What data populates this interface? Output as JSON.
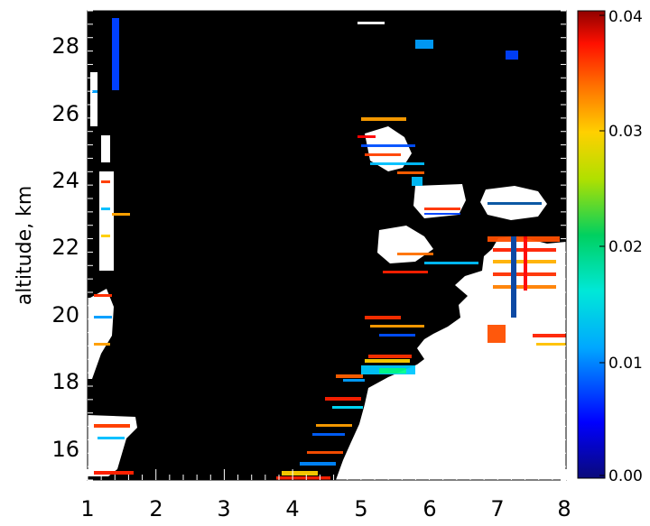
{
  "chart_data": {
    "type": "heatmap",
    "title": "",
    "xlabel": "",
    "ylabel": "altitude, km",
    "xlim": [
      1,
      8
    ],
    "ylim": [
      15,
      29
    ],
    "x_ticks": [
      "1",
      "2",
      "3",
      "4",
      "5",
      "6",
      "7",
      "8"
    ],
    "y_ticks": [
      "16",
      "18",
      "20",
      "22",
      "24",
      "26",
      "28"
    ],
    "colorbar": {
      "range": [
        0.0,
        0.04
      ],
      "ticks": [
        "0.00",
        "0.01",
        "0.02",
        "0.03",
        "0.04"
      ],
      "colormap": "rainbow (dark blue → cyan → green → yellow → orange → red → dark red)"
    },
    "background_color": "#000000",
    "saturated_color": "#ffffff",
    "regions": [
      {
        "description": "white saturated region (values above scale)",
        "x_from": 4.9,
        "x_to": 8.0,
        "y_from": 15.0,
        "y_to": 22.2
      },
      {
        "description": "white saturated patches near top-right",
        "x_from": 5.8,
        "x_to": 7.8,
        "y_from": 22.6,
        "y_to": 23.7
      },
      {
        "description": "colored edge features along left boundary",
        "x_from": 1.0,
        "x_to": 1.6,
        "y_from": 15.2,
        "y_to": 29.0
      }
    ]
  }
}
